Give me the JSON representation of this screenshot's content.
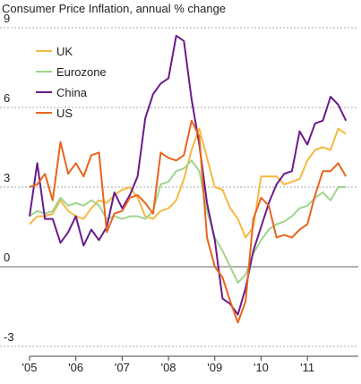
{
  "chart_data": {
    "type": "line",
    "title": "Consumer Price Inflation, annual % change",
    "x": [
      2005.0,
      2005.167,
      2005.333,
      2005.5,
      2005.667,
      2005.833,
      2006.0,
      2006.167,
      2006.333,
      2006.5,
      2006.667,
      2006.833,
      2007.0,
      2007.167,
      2007.333,
      2007.5,
      2007.667,
      2007.833,
      2008.0,
      2008.167,
      2008.333,
      2008.5,
      2008.667,
      2008.833,
      2009.0,
      2009.167,
      2009.333,
      2009.5,
      2009.667,
      2009.833,
      2010.0,
      2010.167,
      2010.333,
      2010.5,
      2010.667,
      2010.833,
      2011.0,
      2011.167,
      2011.333,
      2011.5,
      2011.667,
      2011.833
    ],
    "series": [
      {
        "name": "UK",
        "color": "#f5b941",
        "values": [
          1.6,
          1.9,
          1.9,
          2.0,
          2.5,
          2.1,
          1.9,
          1.8,
          2.2,
          2.5,
          2.4,
          2.7,
          2.9,
          3.0,
          2.6,
          1.9,
          1.8,
          2.1,
          2.2,
          2.5,
          3.3,
          4.4,
          5.2,
          4.1,
          3.0,
          2.9,
          2.2,
          1.8,
          1.1,
          1.5,
          3.4,
          3.4,
          3.4,
          3.1,
          3.2,
          3.3,
          4.0,
          4.4,
          4.5,
          4.4,
          5.2,
          5.0
        ]
      },
      {
        "name": "Eurozone",
        "color": "#9fd58f",
        "values": [
          1.9,
          2.1,
          2.0,
          2.1,
          2.6,
          2.3,
          2.4,
          2.3,
          2.5,
          2.3,
          1.8,
          1.9,
          1.8,
          1.9,
          1.9,
          1.8,
          2.1,
          3.1,
          3.2,
          3.6,
          3.7,
          4.0,
          3.6,
          2.1,
          1.1,
          0.6,
          0.0,
          -0.6,
          -0.3,
          0.5,
          1.0,
          1.4,
          1.6,
          1.7,
          1.9,
          2.2,
          2.3,
          2.6,
          2.8,
          2.5,
          3.0,
          3.0
        ]
      },
      {
        "name": "China",
        "color": "#6a1b8a",
        "values": [
          1.9,
          3.9,
          1.8,
          1.8,
          0.9,
          1.3,
          1.9,
          0.8,
          1.4,
          1.0,
          1.5,
          2.8,
          2.2,
          2.7,
          3.4,
          5.6,
          6.5,
          6.9,
          7.1,
          8.7,
          8.5,
          6.3,
          4.6,
          2.4,
          1.0,
          -1.2,
          -1.4,
          -1.8,
          -0.8,
          0.6,
          1.5,
          2.4,
          3.1,
          3.5,
          3.6,
          5.1,
          4.6,
          5.4,
          5.5,
          6.4,
          6.1,
          5.5
        ]
      },
      {
        "name": "US",
        "color": "#e8641e",
        "values": [
          3.0,
          3.1,
          3.5,
          2.5,
          4.7,
          3.5,
          3.9,
          3.4,
          4.2,
          4.3,
          1.3,
          2.0,
          2.1,
          2.6,
          2.7,
          2.4,
          2.0,
          4.3,
          4.1,
          4.0,
          4.2,
          5.5,
          4.9,
          1.1,
          0.0,
          -0.4,
          -1.3,
          -2.1,
          -1.3,
          1.8,
          2.6,
          2.3,
          1.1,
          1.2,
          1.1,
          1.4,
          1.6,
          2.7,
          3.6,
          3.6,
          3.9,
          3.4
        ]
      }
    ],
    "xlim": [
      2005,
      2012.1
    ],
    "xticks": [
      {
        "value": 2005,
        "label": "'05"
      },
      {
        "value": 2006,
        "label": "'06"
      },
      {
        "value": 2007,
        "label": "'07"
      },
      {
        "value": 2008,
        "label": "'08"
      },
      {
        "value": 2009,
        "label": "'09"
      },
      {
        "value": 2010,
        "label": "'10"
      },
      {
        "value": 2011,
        "label": "'11"
      }
    ],
    "ylim": [
      -3.37,
      9
    ],
    "yticks": [
      -3,
      0,
      3,
      6,
      9
    ],
    "grid": true
  }
}
